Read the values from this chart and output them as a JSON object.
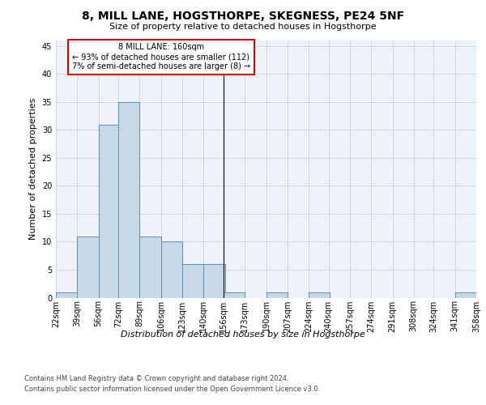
{
  "title": "8, MILL LANE, HOGSTHORPE, SKEGNESS, PE24 5NF",
  "subtitle": "Size of property relative to detached houses in Hogsthorpe",
  "xlabel": "Distribution of detached houses by size in Hogsthorpe",
  "ylabel": "Number of detached properties",
  "bar_color": "#c8d8e8",
  "bar_edge_color": "#5b8db8",
  "background_color": "#eef2fb",
  "grid_color": "#d0d8e8",
  "bin_edges": [
    22,
    39,
    56,
    72,
    89,
    106,
    123,
    140,
    156,
    173,
    190,
    207,
    224,
    240,
    257,
    274,
    291,
    308,
    324,
    341,
    358
  ],
  "bin_labels": [
    "22sqm",
    "39sqm",
    "56sqm",
    "72sqm",
    "89sqm",
    "106sqm",
    "123sqm",
    "140sqm",
    "156sqm",
    "173sqm",
    "190sqm",
    "207sqm",
    "224sqm",
    "240sqm",
    "257sqm",
    "274sqm",
    "291sqm",
    "308sqm",
    "324sqm",
    "341sqm",
    "358sqm"
  ],
  "counts": [
    1,
    11,
    31,
    35,
    11,
    10,
    6,
    6,
    1,
    0,
    1,
    0,
    1,
    0,
    0,
    0,
    0,
    0,
    0,
    1
  ],
  "ylim": [
    0,
    46
  ],
  "yticks": [
    0,
    5,
    10,
    15,
    20,
    25,
    30,
    35,
    40,
    45
  ],
  "vline_x": 156,
  "annotation_text": "8 MILL LANE: 160sqm\n← 93% of detached houses are smaller (112)\n7% of semi-detached houses are larger (8) →",
  "annotation_box_color": "#ffffff",
  "annotation_border_color": "#cc0000",
  "footer_line1": "Contains HM Land Registry data © Crown copyright and database right 2024.",
  "footer_line2": "Contains public sector information licensed under the Open Government Licence v3.0.",
  "title_fontsize": 10,
  "subtitle_fontsize": 8,
  "ylabel_fontsize": 8,
  "tick_fontsize": 7,
  "annotation_fontsize": 7,
  "footer_fontsize": 6
}
